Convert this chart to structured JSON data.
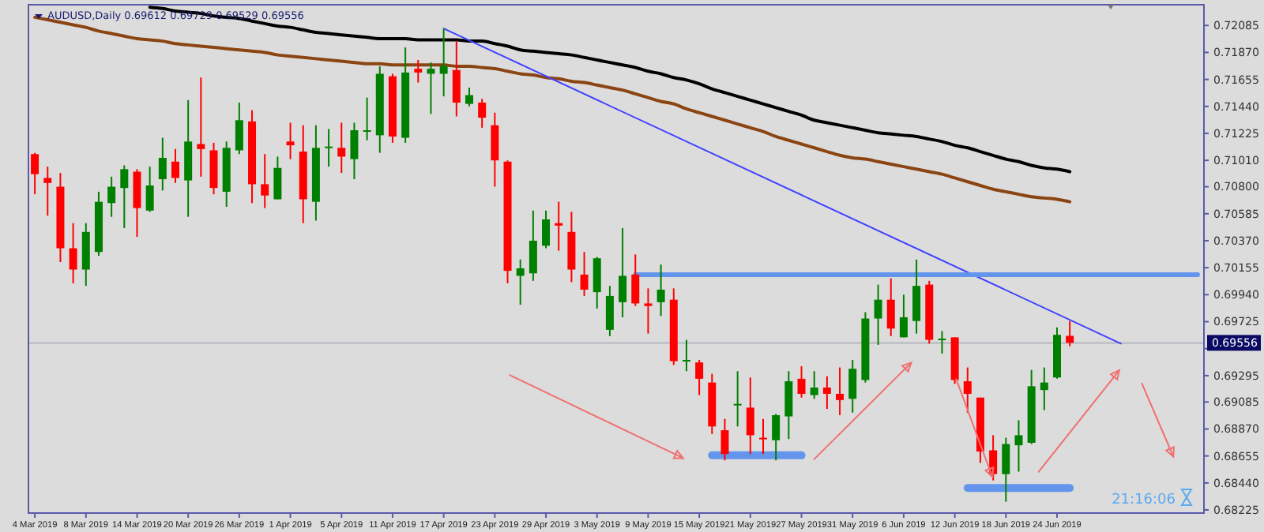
{
  "chart_data": {
    "type": "candlestick",
    "title": "AUDUSD,Daily  0.69612 0.69729 0.69529 0.69556",
    "categories": [
      "4 Mar 2019",
      null,
      null,
      null,
      "8 Mar 2019",
      null,
      null,
      null,
      "14 Mar 2019",
      null,
      null,
      null,
      "20 Mar 2019",
      null,
      null,
      null,
      "26 Mar 2019",
      null,
      null,
      null,
      "1 Apr 2019",
      null,
      null,
      null,
      "5 Apr 2019",
      null,
      null,
      null,
      "11 Apr 2019",
      null,
      null,
      null,
      "17 Apr 2019",
      null,
      null,
      null,
      "23 Apr 2019",
      null,
      null,
      null,
      "29 Apr 2019",
      null,
      null,
      null,
      "3 May 2019",
      null,
      null,
      null,
      "9 May 2019",
      null,
      null,
      null,
      "15 May 2019",
      null,
      null,
      null,
      "21 May 2019",
      null,
      null,
      null,
      "27 May 2019",
      null,
      null,
      null,
      "31 May 2019",
      null,
      null,
      null,
      "6 Jun 2019",
      null,
      null,
      null,
      "12 Jun 2019",
      null,
      null,
      null,
      "18 Jun 2019",
      null,
      null,
      null,
      "24 Jun 2019",
      null,
      null,
      null,
      null,
      null,
      null,
      null,
      null,
      null,
      null,
      null
    ],
    "ohlc": [
      [
        0.7106,
        0.7107,
        0.7074,
        0.709
      ],
      [
        0.7087,
        0.7096,
        0.7057,
        0.7083
      ],
      [
        0.708,
        0.7091,
        0.702,
        0.7031
      ],
      [
        0.7031,
        0.7051,
        0.7003,
        0.7014
      ],
      [
        0.7014,
        0.7051,
        0.7001,
        0.7044
      ],
      [
        0.7028,
        0.7076,
        0.7025,
        0.7068
      ],
      [
        0.7067,
        0.7088,
        0.7056,
        0.708
      ],
      [
        0.7079,
        0.7097,
        0.7047,
        0.7094
      ],
      [
        0.7092,
        0.7094,
        0.704,
        0.7063
      ],
      [
        0.7061,
        0.7096,
        0.706,
        0.7081
      ],
      [
        0.7086,
        0.7119,
        0.7077,
        0.7103
      ],
      [
        0.71,
        0.711,
        0.7083,
        0.7087
      ],
      [
        0.7085,
        0.7149,
        0.7056,
        0.7116
      ],
      [
        0.7114,
        0.7167,
        0.7088,
        0.711
      ],
      [
        0.7109,
        0.7115,
        0.7074,
        0.7079
      ],
      [
        0.7076,
        0.7116,
        0.7064,
        0.7111
      ],
      [
        0.7109,
        0.7147,
        0.7106,
        0.7133
      ],
      [
        0.7132,
        0.7141,
        0.7067,
        0.7082
      ],
      [
        0.7082,
        0.7106,
        0.7063,
        0.7073
      ],
      [
        0.707,
        0.7104,
        0.707,
        0.7095
      ],
      [
        0.7116,
        0.7131,
        0.7102,
        0.7113
      ],
      [
        0.7108,
        0.7129,
        0.7051,
        0.707
      ],
      [
        0.7068,
        0.7129,
        0.7053,
        0.7111
      ],
      [
        0.7111,
        0.7126,
        0.7096,
        0.7112
      ],
      [
        0.7111,
        0.7131,
        0.7091,
        0.7104
      ],
      [
        0.7102,
        0.7131,
        0.7086,
        0.7125
      ],
      [
        0.7124,
        0.7151,
        0.7117,
        0.7125
      ],
      [
        0.7121,
        0.7176,
        0.7107,
        0.717
      ],
      [
        0.7168,
        0.717,
        0.7115,
        0.712
      ],
      [
        0.7119,
        0.7191,
        0.7115,
        0.7171
      ],
      [
        0.7174,
        0.7181,
        0.7163,
        0.7171
      ],
      [
        0.717,
        0.7179,
        0.7138,
        0.7174
      ],
      [
        0.717,
        0.7206,
        0.7152,
        0.7176
      ],
      [
        0.7173,
        0.7196,
        0.7136,
        0.7147
      ],
      [
        0.7146,
        0.7159,
        0.7144,
        0.7153
      ],
      [
        0.7147,
        0.715,
        0.7127,
        0.7135
      ],
      [
        0.7129,
        0.7139,
        0.708,
        0.7101
      ],
      [
        0.71,
        0.7101,
        0.7003,
        0.7013
      ],
      [
        0.7009,
        0.7022,
        0.6986,
        0.7015
      ],
      [
        0.7011,
        0.7061,
        0.7005,
        0.7037
      ],
      [
        0.7033,
        0.7061,
        0.7031,
        0.7054
      ],
      [
        0.7051,
        0.7068,
        0.7029,
        0.7049
      ],
      [
        0.7044,
        0.706,
        0.7004,
        0.7014
      ],
      [
        0.701,
        0.7028,
        0.6993,
        0.6998
      ],
      [
        0.6996,
        0.7024,
        0.6983,
        0.7023
      ],
      [
        0.6966,
        0.7001,
        0.6961,
        0.6993
      ],
      [
        0.6988,
        0.7047,
        0.6976,
        0.7009
      ],
      [
        0.701,
        0.7026,
        0.6985,
        0.6987
      ],
      [
        0.6987,
        0.6999,
        0.6963,
        0.6985
      ],
      [
        0.6988,
        0.7018,
        0.6977,
        0.6998
      ],
      [
        0.699,
        0.6999,
        0.6938,
        0.6941
      ],
      [
        0.6941,
        0.6958,
        0.6933,
        0.6942
      ],
      [
        0.694,
        0.6942,
        0.6914,
        0.6927
      ],
      [
        0.6924,
        0.6931,
        0.6883,
        0.6889
      ],
      [
        0.6886,
        0.6895,
        0.6862,
        0.6867
      ],
      [
        0.6906,
        0.6933,
        0.6889,
        0.6907
      ],
      [
        0.6904,
        0.6928,
        0.6867,
        0.6882
      ],
      [
        0.688,
        0.6895,
        0.6867,
        0.6879
      ],
      [
        0.6878,
        0.6899,
        0.6862,
        0.6898
      ],
      [
        0.6897,
        0.6933,
        0.6879,
        0.6925
      ],
      [
        0.6927,
        0.6937,
        0.6912,
        0.6915
      ],
      [
        0.6914,
        0.6933,
        0.6911,
        0.692
      ],
      [
        0.692,
        0.6929,
        0.6903,
        0.6915
      ],
      [
        0.6915,
        0.6936,
        0.6898,
        0.691
      ],
      [
        0.6911,
        0.6942,
        0.69,
        0.6935
      ],
      [
        0.6926,
        0.698,
        0.6924,
        0.6975
      ],
      [
        0.6975,
        0.7002,
        0.6954,
        0.699
      ],
      [
        0.699,
        0.7007,
        0.6961,
        0.6967
      ],
      [
        0.696,
        0.6994,
        0.696,
        0.6976
      ],
      [
        0.6973,
        0.7022,
        0.6963,
        0.7001
      ],
      [
        0.7002,
        0.7005,
        0.6955,
        0.6958
      ],
      [
        0.6958,
        0.6965,
        0.6947,
        0.6959
      ],
      [
        0.696,
        0.696,
        0.6923,
        0.6926
      ],
      [
        0.6925,
        0.6936,
        0.69,
        0.6915
      ],
      [
        0.6912,
        0.6912,
        0.686,
        0.6869
      ],
      [
        0.687,
        0.6882,
        0.6846,
        0.6851
      ],
      [
        0.6851,
        0.688,
        0.6829,
        0.6875
      ],
      [
        0.6874,
        0.6894,
        0.6853,
        0.6882
      ],
      [
        0.6876,
        0.6934,
        0.6875,
        0.6921
      ],
      [
        0.6918,
        0.6936,
        0.6902,
        0.6924
      ],
      [
        0.6928,
        0.6968,
        0.6927,
        0.6962
      ],
      [
        0.69612,
        0.69729,
        0.69529,
        0.69556
      ],
      null,
      null,
      null,
      null,
      null,
      null,
      null,
      null,
      null,
      null
    ],
    "colors": [
      "#ff0000",
      "#ff0000",
      "#ff0000",
      "#ff0000",
      "#008000",
      "#008000",
      "#008000",
      "#008000",
      "#ff0000",
      "#008000",
      "#008000",
      "#ff0000",
      "#008000",
      "#ff0000",
      "#ff0000",
      "#008000",
      "#008000",
      "#ff0000",
      "#ff0000",
      "#008000",
      "#ff0000",
      "#ff0000",
      "#008000",
      "#008000",
      "#ff0000",
      "#008000",
      "#008000",
      "#008000",
      "#ff0000",
      "#008000",
      "#ff0000",
      "#008000",
      "#008000",
      "#ff0000",
      "#008000",
      "#ff0000",
      "#ff0000",
      "#ff0000",
      "#008000",
      "#008000",
      "#008000",
      "#ff0000",
      "#ff0000",
      "#ff0000",
      "#008000",
      "#008000",
      "#008000",
      "#ff0000",
      "#ff0000",
      "#008000",
      "#ff0000",
      "#008000",
      "#ff0000",
      "#ff0000",
      "#ff0000",
      "#008000",
      "#ff0000",
      "#ff0000",
      "#008000",
      "#008000",
      "#ff0000",
      "#008000",
      "#ff0000",
      "#ff0000",
      "#008000",
      "#008000",
      "#008000",
      "#ff0000",
      "#008000",
      "#008000",
      "#ff0000",
      "#008000",
      "#ff0000",
      "#ff0000",
      "#ff0000",
      "#ff0000",
      "#008000",
      "#008000",
      "#008000",
      "#008000",
      "#008000",
      "#ff0000",
      null,
      null,
      null,
      null,
      null,
      null,
      null,
      null,
      null,
      null
    ],
    "series": [
      {
        "type": "line",
        "color": "#000000",
        "values": [
          null,
          null,
          null,
          null,
          null,
          null,
          null,
          null,
          null,
          0.7223,
          0.7222,
          0.722,
          0.7219,
          0.7218,
          0.7216,
          0.7215,
          0.7214,
          0.7212,
          0.721,
          0.7208,
          0.7207,
          0.7205,
          0.7203,
          0.7202,
          0.7201,
          0.72,
          0.7199,
          0.7198,
          0.7198,
          0.7198,
          0.7197,
          0.7197,
          0.7197,
          0.7197,
          0.7196,
          0.7196,
          0.7194,
          0.7192,
          0.7189,
          0.7188,
          0.7187,
          0.7186,
          0.7185,
          0.7183,
          0.7181,
          0.7179,
          0.7177,
          0.7175,
          0.7172,
          0.717,
          0.7167,
          0.7165,
          0.7162,
          0.7158,
          0.7155,
          0.7152,
          0.7149,
          0.7146,
          0.7143,
          0.714,
          0.7137,
          0.7133,
          0.7131,
          0.7129,
          0.7127,
          0.7125,
          0.7123,
          0.7122,
          0.7121,
          0.712,
          0.7118,
          0.7116,
          0.7113,
          0.7111,
          0.7108,
          0.7105,
          0.7102,
          0.71,
          0.7097,
          0.7095,
          0.7094,
          0.7092,
          null,
          null,
          null,
          null,
          null,
          null,
          null,
          null,
          null,
          null
        ]
      },
      {
        "type": "line",
        "color": "#8b4513",
        "values": [
          0.7215,
          0.7213,
          0.7211,
          0.7209,
          0.7207,
          0.7204,
          0.7202,
          0.72,
          0.7198,
          0.7197,
          0.7196,
          0.7194,
          0.7193,
          0.7192,
          0.7191,
          0.719,
          0.7189,
          0.7188,
          0.7187,
          0.7185,
          0.7184,
          0.7183,
          0.7182,
          0.7181,
          0.718,
          0.7179,
          0.7178,
          0.7178,
          0.7177,
          0.7177,
          0.7177,
          0.7177,
          0.7177,
          0.7176,
          0.7176,
          0.7175,
          0.7174,
          0.7172,
          0.717,
          0.7169,
          0.7167,
          0.7166,
          0.7164,
          0.7163,
          0.7161,
          0.7159,
          0.7157,
          0.7154,
          0.7151,
          0.7148,
          0.7146,
          0.7142,
          0.7139,
          0.7136,
          0.7133,
          0.713,
          0.7127,
          0.7124,
          0.712,
          0.7117,
          0.7114,
          0.7111,
          0.7108,
          0.7105,
          0.7103,
          0.7102,
          0.71,
          0.7098,
          0.7096,
          0.7094,
          0.7092,
          0.709,
          0.7087,
          0.7084,
          0.7081,
          0.7078,
          0.7076,
          0.7074,
          0.7072,
          0.7071,
          0.707,
          0.7068,
          null,
          null,
          null,
          null,
          null,
          null,
          null,
          null,
          null,
          null
        ]
      },
      {
        "type": "line",
        "color": "#4040ff",
        "values": [
          null,
          null,
          null,
          null,
          null,
          null,
          null,
          null,
          null,
          null,
          null,
          null,
          null,
          null,
          null,
          null,
          null,
          null,
          null,
          null,
          null,
          null,
          null,
          null,
          null,
          null,
          null,
          null,
          null,
          null,
          null,
          null,
          0.7206,
          null,
          null,
          null,
          null,
          null,
          null,
          null,
          null,
          null,
          null,
          null,
          null,
          null,
          null,
          null,
          null,
          null,
          null,
          null,
          null,
          null,
          null,
          null,
          null,
          null,
          null,
          null,
          null,
          null,
          null,
          null,
          null,
          null,
          null,
          null,
          null,
          null,
          null,
          null,
          null,
          null,
          null,
          null,
          null,
          null,
          null,
          null,
          null,
          null,
          null,
          null,
          null,
          0.6955,
          null,
          null,
          null,
          null,
          null,
          null
        ]
      },
      {
        "type": "line",
        "color": "#6495ed",
        "values": [
          null,
          null,
          null,
          null,
          null,
          null,
          null,
          null,
          null,
          null,
          null,
          null,
          null,
          null,
          null,
          null,
          null,
          null,
          null,
          null,
          null,
          null,
          null,
          null,
          null,
          null,
          null,
          null,
          null,
          null,
          null,
          null,
          null,
          null,
          null,
          null,
          null,
          null,
          null,
          null,
          null,
          null,
          null,
          null,
          null,
          null,
          null,
          0.701,
          null,
          null,
          null,
          null,
          null,
          null,
          null,
          null,
          null,
          null,
          null,
          null,
          null,
          null,
          null,
          null,
          null,
          null,
          null,
          null,
          null,
          null,
          null,
          null,
          null,
          null,
          null,
          null,
          null,
          null,
          null,
          null,
          null,
          null,
          null,
          null,
          null,
          null,
          null,
          null,
          null,
          null,
          null,
          0.701
        ]
      },
      {
        "type": "line",
        "color": "#6495ed",
        "values": [
          null,
          null,
          null,
          null,
          null,
          null,
          null,
          null,
          null,
          null,
          null,
          null,
          null,
          null,
          null,
          null,
          null,
          null,
          null,
          null,
          null,
          null,
          null,
          null,
          null,
          null,
          null,
          null,
          null,
          null,
          null,
          null,
          null,
          null,
          null,
          null,
          null,
          null,
          null,
          null,
          null,
          null,
          null,
          null,
          null,
          null,
          null,
          null,
          null,
          null,
          null,
          null,
          null,
          0.6866,
          null,
          null,
          null,
          null,
          null,
          null,
          0.6866,
          null,
          null,
          null,
          null,
          null,
          null,
          null,
          null,
          null,
          null,
          null,
          null,
          null,
          null,
          null,
          null,
          null,
          null,
          null,
          null,
          null,
          null,
          null,
          null,
          null,
          null,
          null,
          null,
          null,
          null,
          null
        ]
      },
      {
        "type": "line",
        "color": "#6495ed",
        "values": [
          null,
          null,
          null,
          null,
          null,
          null,
          null,
          null,
          null,
          null,
          null,
          null,
          null,
          null,
          null,
          null,
          null,
          null,
          null,
          null,
          null,
          null,
          null,
          null,
          null,
          null,
          null,
          null,
          null,
          null,
          null,
          null,
          null,
          null,
          null,
          null,
          null,
          null,
          null,
          null,
          null,
          null,
          null,
          null,
          null,
          null,
          null,
          null,
          null,
          null,
          null,
          null,
          null,
          null,
          null,
          null,
          null,
          null,
          null,
          null,
          null,
          null,
          null,
          null,
          null,
          null,
          null,
          null,
          null,
          null,
          null,
          null,
          null,
          0.684,
          null,
          null,
          null,
          null,
          null,
          null,
          null,
          0.684,
          null,
          null,
          null,
          null,
          null,
          null,
          null,
          null,
          null,
          null
        ]
      }
    ],
    "ylim": [
      0.682,
      0.7225
    ],
    "yticks": [
      0.72085,
      {
        "value": 0.7187,
        "label": "0.71870"
      },
      0.71655,
      {
        "value": 0.7144,
        "label": "0.71440"
      },
      0.71225,
      {
        "value": 0.7101,
        "label": "0.71010"
      },
      {
        "value": 0.708,
        "label": "0.70800"
      },
      0.70585,
      {
        "value": 0.7037,
        "label": "0.70370"
      },
      0.70155,
      {
        "value": 0.6994,
        "label": "0.69940"
      },
      0.69725,
      {
        "value": 0.6951,
        "label": null
      },
      0.69295,
      0.69085,
      {
        "value": 0.6887,
        "label": "0.68870"
      },
      0.68655,
      {
        "value": 0.6844,
        "label": "0.68440"
      },
      0.68225
    ],
    "ref_lines": [
      {
        "axis": "y",
        "value": 0.69556,
        "label": "0.69556",
        "color": "#c0c4c8"
      }
    ],
    "annotations": [
      "21:16:06"
    ],
    "grid": false
  }
}
